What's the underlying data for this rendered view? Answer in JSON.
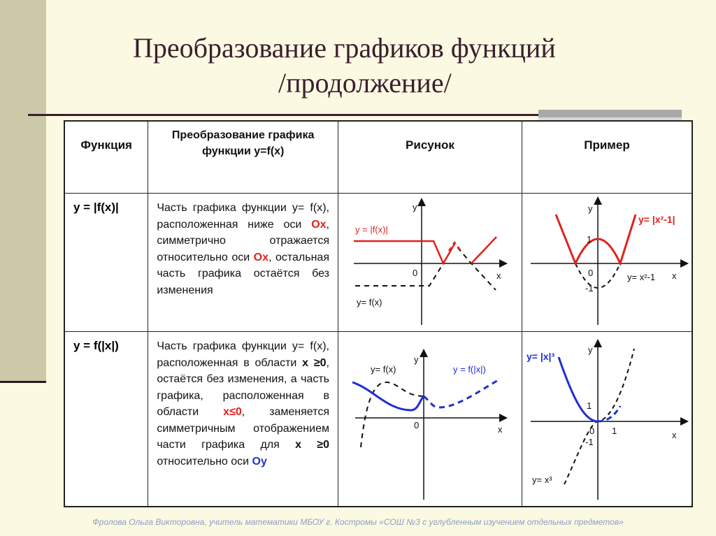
{
  "title": {
    "line1": "Преобразование графиков функций",
    "line2": "/продолжение/"
  },
  "table": {
    "headers": {
      "function": "Функция",
      "transformation": "Преобразование графика функции y=f(x)",
      "figure": "Рисунок",
      "example": "Пример"
    },
    "rows": [
      {
        "function": "y = |f(x)|",
        "desc": {
          "t1": "Часть графика функции y= f(x), расположенная ниже оси ",
          "a1": "Ox",
          "t2": ", симметрично отражается относительно оси ",
          "a2": "Ox",
          "t3": ", остальная часть графика остаётся без изменения"
        },
        "figure": {
          "axis_x": "x",
          "axis_y": "y",
          "origin": "0",
          "label_transformed": "y = |f(x)|",
          "label_original": "y= f(x)"
        },
        "example": {
          "axis_x": "x",
          "axis_y": "y",
          "origin": "0",
          "tick_1": "1",
          "tick_m1": "-1",
          "label_transformed": "y= |x²-1|",
          "label_original": "y= x²-1"
        }
      },
      {
        "function": "y = f(|x|)",
        "desc": {
          "t1": "Часть графика функции y= f(x), расположенная в области ",
          "b1": "x ≥0",
          "t2": ", остаётся без изменения, а часть графика, расположенная в области ",
          "a1": "x≤0",
          "t3": ", заменяется симметричным отображением части графика для ",
          "b2": "x ≥0",
          "t4": " относительно оси ",
          "c1": "Oy"
        },
        "figure": {
          "axis_x": "x",
          "axis_y": "y",
          "origin": "0",
          "label_transformed": "y = f(|x|)",
          "label_original": "y= f(x)"
        },
        "example": {
          "axis_x": "x",
          "axis_y": "y",
          "origin": "0",
          "tick_1": "1",
          "tick_m1": "-1",
          "tick_x1": "1",
          "label_transformed": "y= |x|³",
          "label_original": "y= x³"
        }
      }
    ]
  },
  "colors": {
    "red": "#e0221b",
    "blue": "#1f2fd0",
    "title": "#3a1f2d"
  },
  "footer": "Фролова Ольга Викторовна, учитель математики МБОУ г. Костромы «СОШ №3 с углубленным изучением отдельных предметов»"
}
